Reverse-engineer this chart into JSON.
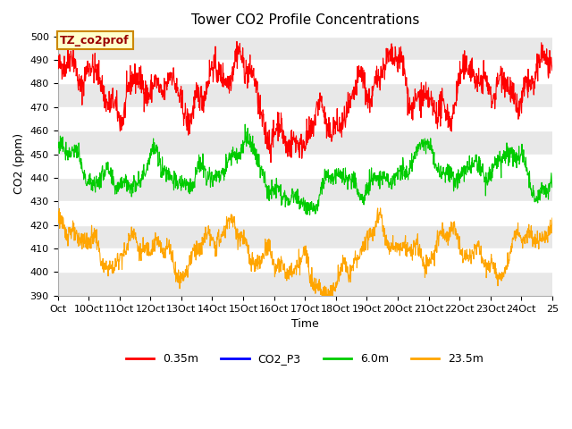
{
  "title": "Tower CO2 Profile Concentrations",
  "xlabel": "Time",
  "ylabel": "CO2 (ppm)",
  "ylim": [
    390,
    502
  ],
  "yticks": [
    390,
    400,
    410,
    420,
    430,
    440,
    450,
    460,
    470,
    480,
    490,
    500
  ],
  "x_labels": [
    "Oct",
    "10Oct",
    "11Oct",
    "12Oct",
    "13Oct",
    "14Oct",
    "15Oct",
    "16Oct",
    "17Oct",
    "18Oct",
    "19Oct",
    "20Oct",
    "21Oct",
    "22Oct",
    "23Oct",
    "24Oct",
    "25"
  ],
  "annotation_text": "TZ_co2prof",
  "legend_entries": [
    {
      "label": "0.35m",
      "color": "#ff0000"
    },
    {
      "label": "CO2_P3",
      "color": "#0000ff"
    },
    {
      "label": "6.0m",
      "color": "#00cc00"
    },
    {
      "label": "23.5m",
      "color": "#ffa500"
    }
  ],
  "n_points": 1500,
  "background_bands": [
    {
      "ymin": 390,
      "ymax": 400,
      "color": "#e8e8e8"
    },
    {
      "ymin": 400,
      "ymax": 410,
      "color": "#ffffff"
    },
    {
      "ymin": 410,
      "ymax": 420,
      "color": "#e8e8e8"
    },
    {
      "ymin": 420,
      "ymax": 430,
      "color": "#ffffff"
    },
    {
      "ymin": 430,
      "ymax": 440,
      "color": "#e8e8e8"
    },
    {
      "ymin": 440,
      "ymax": 450,
      "color": "#ffffff"
    },
    {
      "ymin": 450,
      "ymax": 460,
      "color": "#e8e8e8"
    },
    {
      "ymin": 460,
      "ymax": 470,
      "color": "#ffffff"
    },
    {
      "ymin": 470,
      "ymax": 480,
      "color": "#e8e8e8"
    },
    {
      "ymin": 480,
      "ymax": 490,
      "color": "#ffffff"
    },
    {
      "ymin": 490,
      "ymax": 500,
      "color": "#e8e8e8"
    },
    {
      "ymin": 500,
      "ymax": 502,
      "color": "#ffffff"
    }
  ],
  "fig_facecolor": "#ffffff",
  "ax_facecolor": "#ffffff"
}
